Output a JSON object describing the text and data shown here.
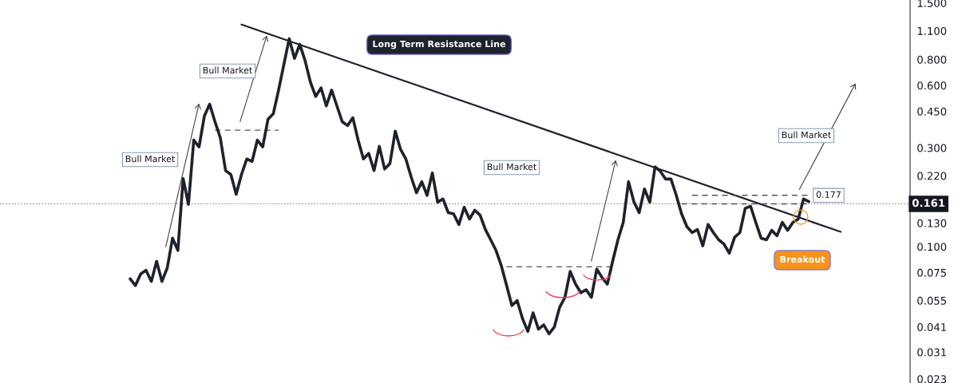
{
  "chart_data": {
    "type": "line",
    "categories": [
      null,
      null,
      null,
      null,
      null,
      null,
      null,
      null,
      null,
      null,
      null,
      null,
      null,
      null,
      null,
      null,
      null,
      null,
      null,
      null,
      null,
      null,
      null,
      null,
      null,
      null,
      null,
      null,
      null,
      null,
      null,
      null,
      null,
      null,
      null,
      null,
      null,
      null,
      null,
      null,
      null,
      null,
      null,
      null,
      null,
      null,
      null,
      null,
      null,
      null,
      null,
      null,
      null,
      null,
      null,
      null,
      null,
      null,
      null,
      null,
      null,
      null,
      null,
      null,
      null,
      null,
      null,
      null,
      null,
      null,
      null,
      null,
      null,
      null,
      null,
      null,
      null,
      null,
      null,
      null,
      null,
      null,
      null,
      null,
      null,
      null,
      null,
      null,
      null,
      null,
      null,
      null,
      null,
      null,
      null,
      null,
      null,
      null,
      null,
      null,
      null,
      null,
      null,
      null,
      null,
      null,
      null,
      null,
      null,
      null,
      null,
      null,
      null,
      null,
      null,
      null,
      null,
      null,
      null,
      null,
      null,
      null,
      null,
      null,
      null,
      null,
      null,
      null,
      null,
      null,
      null,
      null,
      null,
      null,
      null
    ],
    "series": [
      {
        "color": "#1e222d",
        "line_style": "solid",
        "values": [
          0.07,
          0.065,
          0.074,
          0.077,
          0.068,
          0.085,
          0.068,
          0.079,
          0.11,
          0.096,
          0.213,
          0.16,
          0.327,
          0.303,
          0.427,
          0.487,
          0.401,
          0.336,
          0.233,
          0.223,
          0.179,
          0.223,
          0.265,
          0.258,
          0.327,
          0.303,
          0.412,
          0.438,
          0.57,
          0.759,
          1.008,
          0.81,
          0.947,
          0.789,
          0.622,
          0.531,
          0.584,
          0.478,
          0.57,
          0.478,
          0.401,
          0.384,
          0.419,
          0.327,
          0.265,
          0.282,
          0.233,
          0.305,
          0.237,
          0.252,
          0.361,
          0.295,
          0.265,
          0.217,
          0.182,
          0.206,
          0.177,
          0.227,
          0.164,
          0.17,
          0.146,
          0.144,
          0.128,
          0.155,
          0.136,
          0.15,
          0.142,
          0.121,
          0.108,
          0.096,
          0.081,
          0.065,
          0.052,
          0.055,
          0.045,
          0.039,
          0.048,
          0.04,
          0.042,
          0.038,
          0.041,
          0.051,
          0.057,
          0.076,
          0.066,
          0.06,
          0.062,
          0.057,
          0.078,
          0.071,
          0.066,
          0.085,
          0.108,
          0.131,
          0.206,
          0.165,
          0.146,
          0.19,
          0.164,
          0.243,
          0.231,
          0.212,
          0.212,
          0.177,
          0.144,
          0.125,
          0.117,
          0.121,
          0.101,
          0.128,
          0.117,
          0.108,
          0.103,
          0.093,
          0.111,
          0.117,
          0.153,
          0.157,
          0.131,
          0.11,
          0.108,
          0.12,
          0.113,
          0.131,
          0.12,
          0.131,
          0.136,
          0.17,
          0.165,
          null,
          null,
          null,
          null,
          null,
          null
        ]
      },
      {
        "color": "#1e222d",
        "line_style": "solid",
        "values": [
          null,
          null,
          null,
          null,
          null,
          null,
          null,
          null,
          null,
          null,
          null,
          null,
          null,
          null,
          null,
          null,
          null,
          null,
          null,
          null,
          null,
          1.18,
          null,
          null,
          null,
          null,
          null,
          null,
          null,
          null,
          null,
          null,
          null,
          null,
          null,
          null,
          null,
          null,
          null,
          null,
          null,
          null,
          null,
          null,
          null,
          null,
          null,
          null,
          null,
          null,
          null,
          null,
          null,
          null,
          null,
          null,
          null,
          null,
          null,
          null,
          null,
          null,
          null,
          null,
          null,
          null,
          null,
          null,
          null,
          null,
          null,
          null,
          null,
          null,
          null,
          null,
          null,
          null,
          null,
          null,
          null,
          null,
          null,
          null,
          null,
          null,
          null,
          null,
          null,
          null,
          null,
          null,
          null,
          null,
          null,
          null,
          null,
          null,
          null,
          null,
          null,
          null,
          null,
          null,
          null,
          null,
          null,
          null,
          null,
          null,
          null,
          null,
          null,
          null,
          null,
          null,
          null,
          null,
          null,
          null,
          null,
          null,
          null,
          null,
          null,
          null,
          null,
          null,
          null,
          null,
          null,
          null,
          null,
          null,
          0.118
        ]
      },
      {
        "color": "#555555",
        "line_style": "dashed",
        "values": [
          null,
          null,
          null,
          null,
          null,
          null,
          null,
          null,
          null,
          null,
          null,
          null,
          null,
          null,
          null,
          null,
          0.365,
          null,
          null,
          null,
          null,
          null,
          null,
          null,
          null,
          null,
          null,
          null,
          0.365,
          null,
          null,
          null,
          null,
          null,
          null,
          null,
          null,
          null,
          null,
          null,
          null,
          null,
          null,
          null,
          null,
          null,
          null,
          null,
          null,
          null,
          null,
          null,
          null,
          null,
          null,
          null,
          null,
          null,
          null,
          null,
          null,
          null,
          null,
          null,
          null,
          null,
          null,
          null,
          null,
          null,
          null,
          null,
          null,
          null,
          null,
          null,
          null,
          null,
          null,
          null,
          null,
          null,
          null,
          null,
          null,
          null,
          null,
          null,
          null,
          null,
          null,
          null,
          null,
          null,
          null,
          null,
          null,
          null,
          null,
          null,
          null,
          null,
          null,
          null,
          null,
          null,
          null,
          null,
          null,
          null,
          null,
          null,
          null,
          null,
          null,
          null,
          null,
          null,
          null,
          null,
          null,
          null,
          null,
          null,
          null,
          null,
          null,
          null,
          null,
          null,
          null,
          null,
          null,
          null,
          null
        ]
      },
      {
        "color": "#555555",
        "line_style": "dashed",
        "values": [
          null,
          null,
          null,
          null,
          null,
          null,
          null,
          null,
          null,
          null,
          null,
          null,
          null,
          null,
          null,
          null,
          null,
          null,
          null,
          null,
          null,
          null,
          null,
          null,
          null,
          null,
          null,
          null,
          null,
          null,
          null,
          null,
          null,
          null,
          null,
          null,
          null,
          null,
          null,
          null,
          null,
          null,
          null,
          null,
          null,
          null,
          null,
          null,
          null,
          null,
          null,
          null,
          null,
          null,
          null,
          null,
          null,
          null,
          null,
          null,
          null,
          null,
          null,
          null,
          null,
          null,
          null,
          null,
          null,
          null,
          null,
          0.08,
          null,
          null,
          null,
          null,
          null,
          null,
          null,
          null,
          null,
          null,
          null,
          null,
          null,
          null,
          null,
          null,
          null,
          null,
          null,
          0.08,
          null,
          null,
          null,
          null,
          null,
          null,
          null,
          null,
          null,
          null,
          null,
          null,
          null,
          null,
          null,
          null,
          null,
          null,
          null,
          null,
          null,
          null,
          null,
          null,
          null,
          null,
          null,
          null,
          null,
          null,
          null,
          null,
          null,
          null,
          null,
          null,
          null,
          null,
          null,
          null,
          null,
          null,
          null
        ]
      },
      {
        "color": "#555555",
        "line_style": "dashed",
        "values": [
          null,
          null,
          null,
          null,
          null,
          null,
          null,
          null,
          null,
          null,
          null,
          null,
          null,
          null,
          null,
          null,
          null,
          null,
          null,
          null,
          null,
          null,
          null,
          null,
          null,
          null,
          null,
          null,
          null,
          null,
          null,
          null,
          null,
          null,
          null,
          null,
          null,
          null,
          null,
          null,
          null,
          null,
          null,
          null,
          null,
          null,
          null,
          null,
          null,
          null,
          null,
          null,
          null,
          null,
          null,
          null,
          null,
          null,
          null,
          null,
          null,
          null,
          null,
          null,
          null,
          null,
          null,
          null,
          null,
          null,
          null,
          null,
          null,
          null,
          null,
          null,
          null,
          null,
          null,
          null,
          null,
          null,
          null,
          null,
          null,
          null,
          null,
          null,
          null,
          null,
          null,
          null,
          null,
          null,
          null,
          null,
          null,
          null,
          null,
          null,
          null,
          null,
          null,
          null,
          null,
          null,
          0.177,
          null,
          null,
          null,
          null,
          null,
          null,
          null,
          null,
          null,
          null,
          null,
          null,
          null,
          null,
          null,
          null,
          null,
          null,
          null,
          null,
          null,
          0.177,
          null,
          null,
          null,
          null,
          null,
          null
        ]
      },
      {
        "color": "#555555",
        "line_style": "dashed",
        "values": [
          null,
          null,
          null,
          null,
          null,
          null,
          null,
          null,
          null,
          null,
          null,
          null,
          null,
          null,
          null,
          null,
          null,
          null,
          null,
          null,
          null,
          null,
          null,
          null,
          null,
          null,
          null,
          null,
          null,
          null,
          null,
          null,
          null,
          null,
          null,
          null,
          null,
          null,
          null,
          null,
          null,
          null,
          null,
          null,
          null,
          null,
          null,
          null,
          null,
          null,
          null,
          null,
          null,
          null,
          null,
          null,
          null,
          null,
          null,
          null,
          null,
          null,
          null,
          null,
          null,
          null,
          null,
          null,
          null,
          null,
          null,
          null,
          null,
          null,
          null,
          null,
          null,
          null,
          null,
          null,
          null,
          null,
          null,
          null,
          null,
          null,
          null,
          null,
          null,
          null,
          null,
          null,
          null,
          null,
          null,
          null,
          null,
          null,
          null,
          null,
          null,
          null,
          null,
          null,
          0.161,
          null,
          null,
          null,
          null,
          null,
          null,
          null,
          null,
          null,
          null,
          null,
          null,
          null,
          null,
          null,
          null,
          null,
          null,
          null,
          null,
          null,
          null,
          null,
          0.161,
          null,
          null,
          null,
          null,
          null,
          null
        ]
      }
    ],
    "log": "y",
    "ylim": [
      0.022,
      1.55
    ],
    "yticks": [
      {
        "value": 0.023,
        "label": "0.023"
      },
      {
        "value": 0.031,
        "label": "0.031"
      },
      {
        "value": 0.041,
        "label": "0.041"
      },
      {
        "value": 0.055,
        "label": "0.055"
      },
      {
        "value": 0.075,
        "label": "0.075"
      },
      {
        "value": 0.1,
        "label": "0.100"
      },
      {
        "value": 0.13,
        "label": "0.130"
      },
      {
        "value": 0.22,
        "label": "0.220"
      },
      {
        "value": 0.3,
        "label": "0.300"
      },
      {
        "value": 0.45,
        "label": "0.450"
      },
      {
        "value": 0.6,
        "label": "0.600"
      },
      {
        "value": 0.8,
        "label": "0.800"
      },
      {
        "value": 1.1,
        "label": "1.100"
      },
      {
        "value": 1.5,
        "label": "1.500"
      }
    ],
    "tick_labels": "y",
    "grid": false,
    "ref_lines": [
      {
        "axis": "y",
        "value": 0.161,
        "label": "0.161",
        "line_style": "dotted",
        "color": "#787b86"
      }
    ],
    "annotations": [
      "Bull Market",
      "Bull Market",
      "Bull Market",
      "Bull Market",
      "Long Term Resistance Line",
      {
        "text": "0.177",
        "y": 0.177
      },
      "Breakout"
    ]
  }
}
